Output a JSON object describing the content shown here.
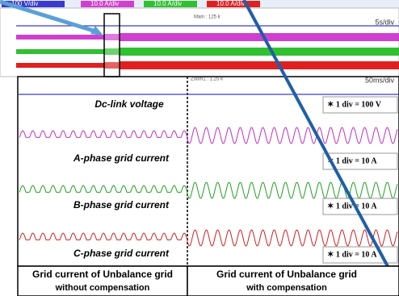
{
  "scope": {
    "channels": [
      "100 V/div",
      "10.0 A/div",
      "10.0 A/div",
      "10.0 A/div"
    ],
    "main": "Main : 125 k",
    "main_scale": "5s/div",
    "zoom": "Zoom1 : 1.25 k",
    "zoom_scale": "50ms/div"
  },
  "traces": [
    {
      "label": "Dc-link voltage",
      "scale": "✶ 1 div = 100 V"
    },
    {
      "label": "A-phase grid current",
      "scale": "✶ 1 div = 10 A"
    },
    {
      "label": "B-phase grid current",
      "scale": "✶ 1 div = 10 A"
    },
    {
      "label": "C-phase grid current",
      "scale": "✶ 1 div = 10 A"
    }
  ],
  "captions": [
    {
      "title": "Grid current of  Unbalance grid",
      "subtitle": "without compensation"
    },
    {
      "title": "Grid current of  Unbalance grid",
      "subtitle": "with compensation"
    }
  ]
}
